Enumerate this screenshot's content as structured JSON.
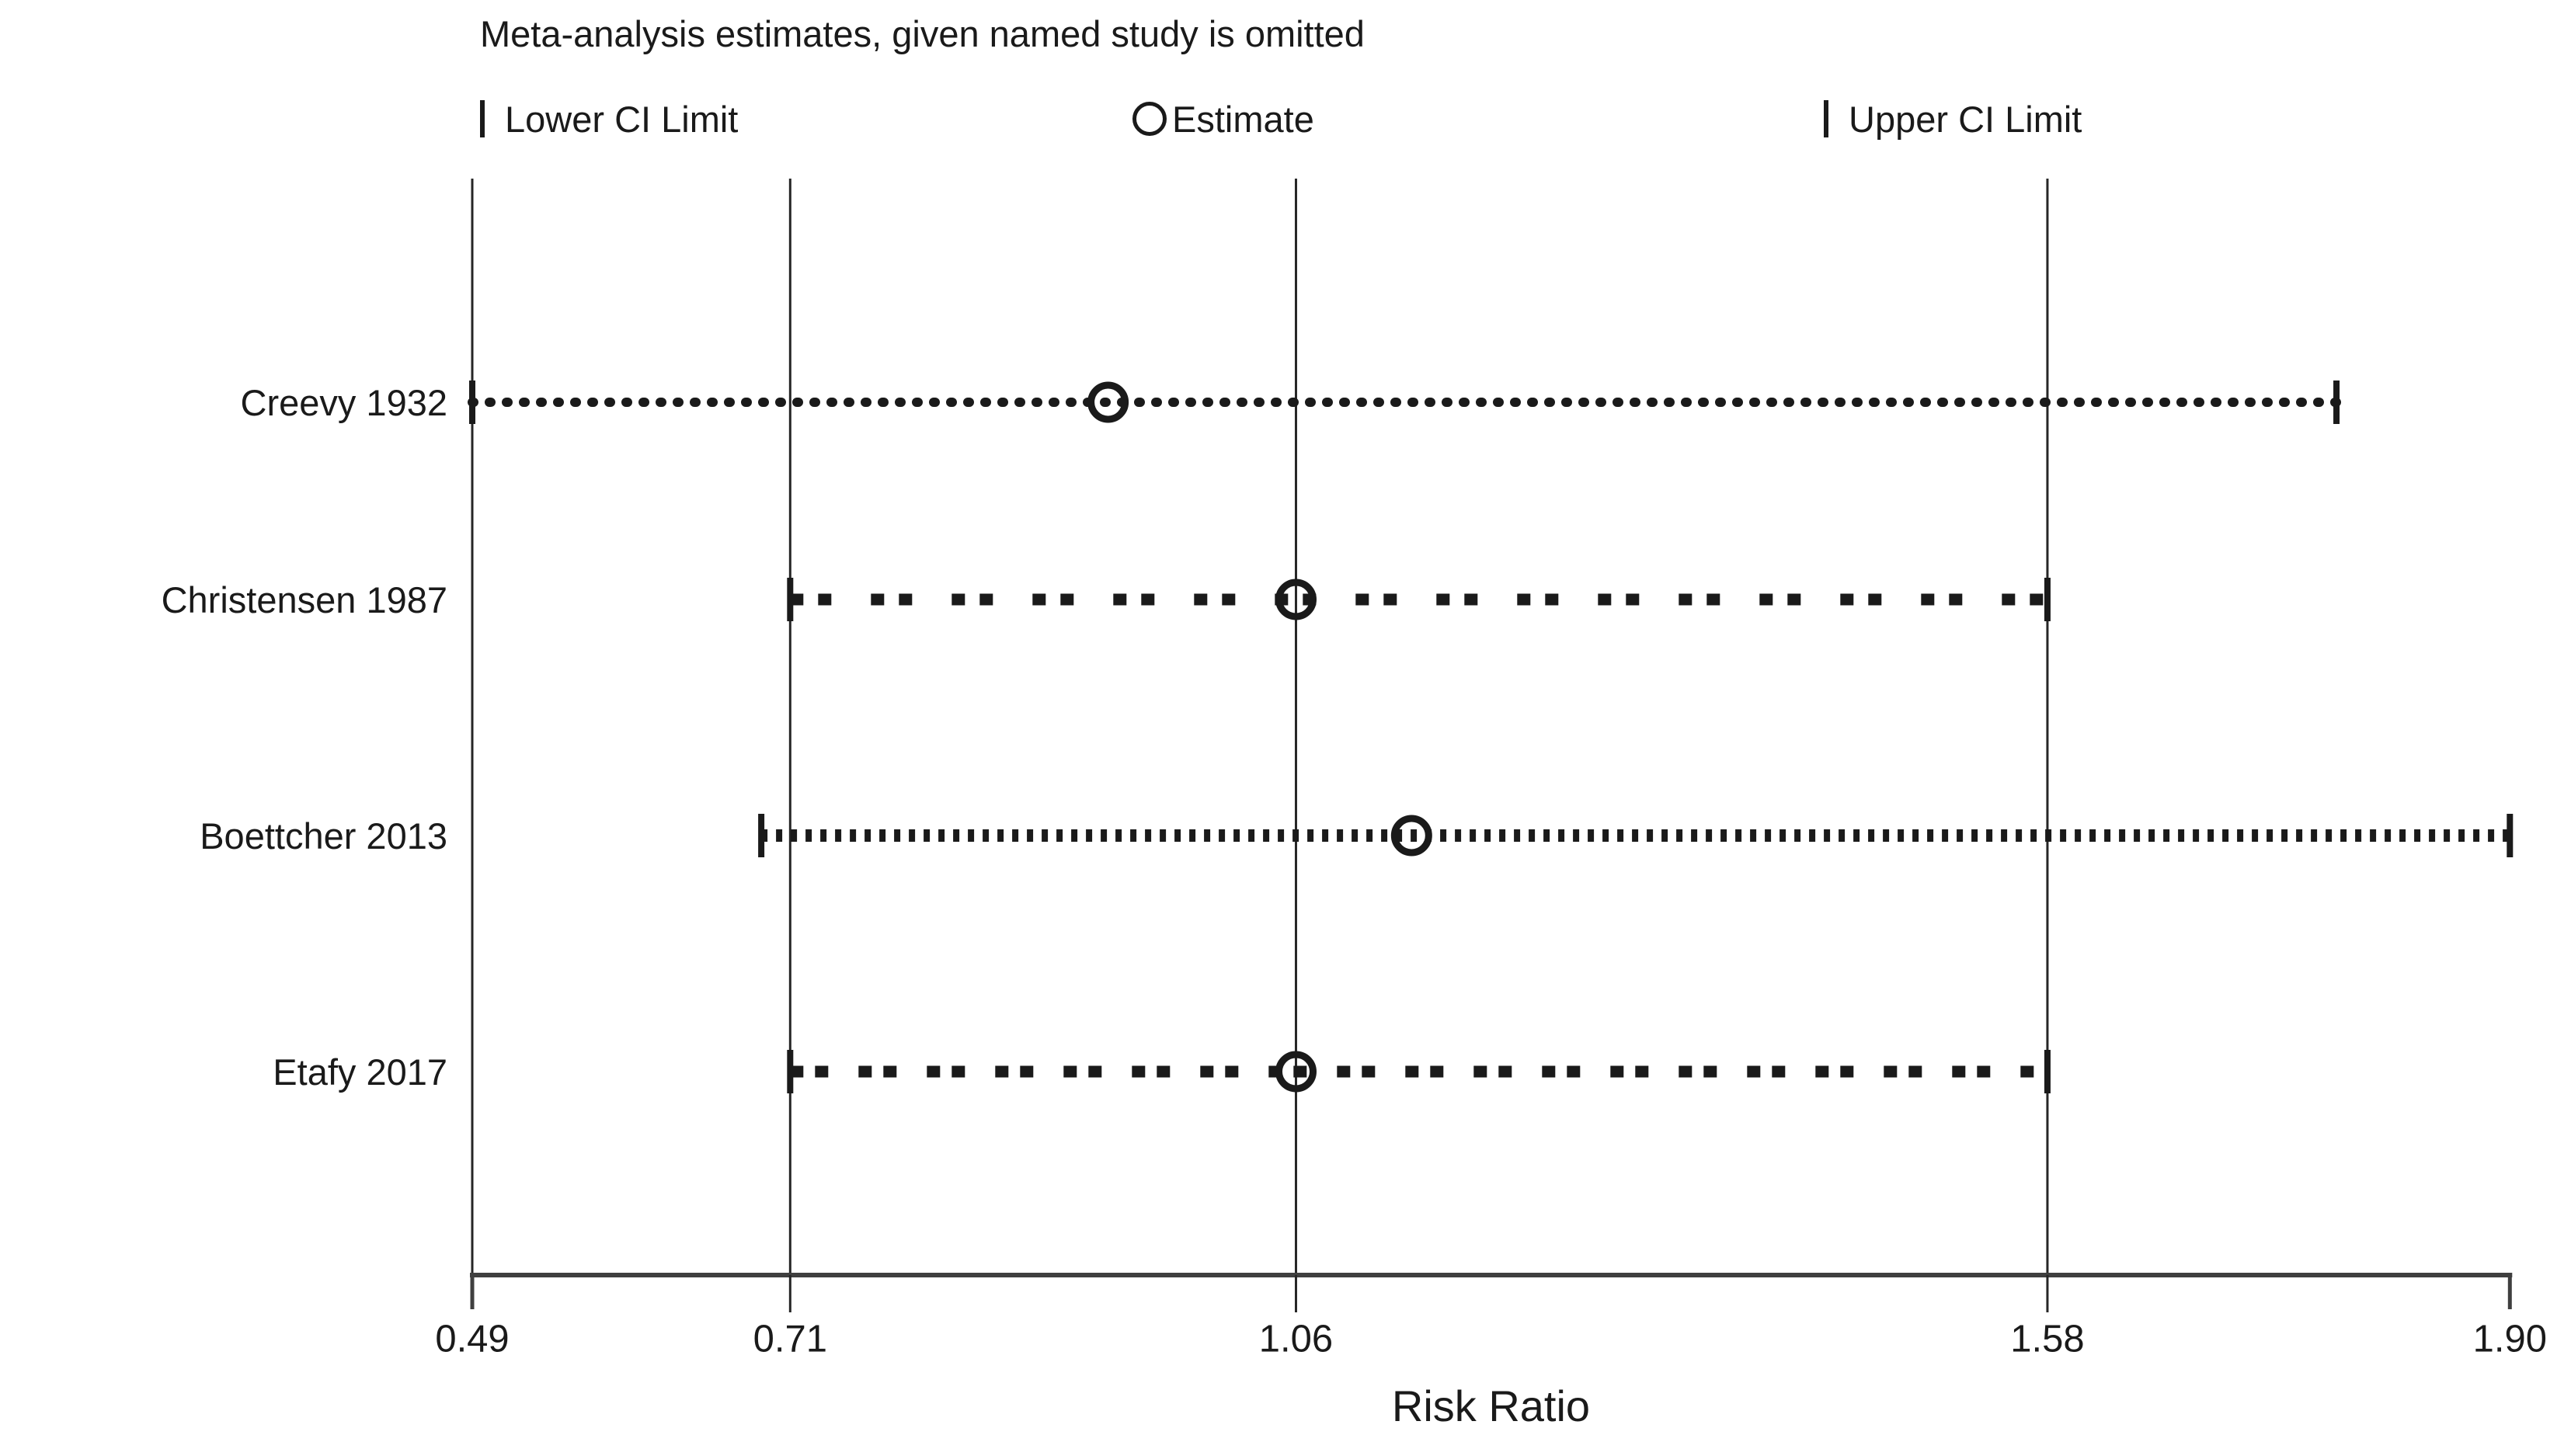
{
  "title": "Meta-analysis estimates, given named study is omitted",
  "legend": {
    "items": [
      {
        "label": "Lower CI Limit",
        "marker": "tick-icon"
      },
      {
        "label": "Estimate",
        "marker": "circle-icon"
      },
      {
        "label": "Upper CI Limit",
        "marker": "tick-icon"
      }
    ]
  },
  "chart_data": {
    "type": "scatter",
    "variant": "leave-one-out meta-analysis sensitivity plot",
    "title": "Meta-analysis estimates, given named study is omitted",
    "xlabel": "Risk Ratio",
    "ylabel": "",
    "xlim": [
      0.49,
      1.9
    ],
    "x_tick_labels": [
      "0.49",
      "0.71",
      "1.06",
      "1.58",
      "1.90"
    ],
    "x_ticks": [
      0.49,
      0.71,
      1.06,
      1.58,
      1.9
    ],
    "reference_gridlines": [
      0.71,
      1.06,
      1.58
    ],
    "grid": "vertical reference lines only",
    "legend_position": "top",
    "legend_entries": [
      "Lower CI Limit",
      "Estimate",
      "Upper CI Limit"
    ],
    "studies": [
      {
        "name": "Creevy 1932",
        "lower_ci": 0.49,
        "estimate": 0.93,
        "upper_ci": 1.78,
        "line_style": "fine-round-dots"
      },
      {
        "name": "Christensen 1987",
        "lower_ci": 0.71,
        "estimate": 1.06,
        "upper_ci": 1.58,
        "line_style": "grouped-dashes"
      },
      {
        "name": "Boettcher 2013",
        "lower_ci": 0.69,
        "estimate": 1.14,
        "upper_ci": 1.9,
        "line_style": "dense-square-dots"
      },
      {
        "name": "Etafy 2017",
        "lower_ci": 0.71,
        "estimate": 1.06,
        "upper_ci": 1.58,
        "line_style": "grouped-dashes-tight"
      }
    ],
    "colors": {
      "foreground": "#1a1a1a",
      "axis": "#3f3f3f",
      "gridline": "#262626",
      "background": "#ffffff"
    }
  }
}
